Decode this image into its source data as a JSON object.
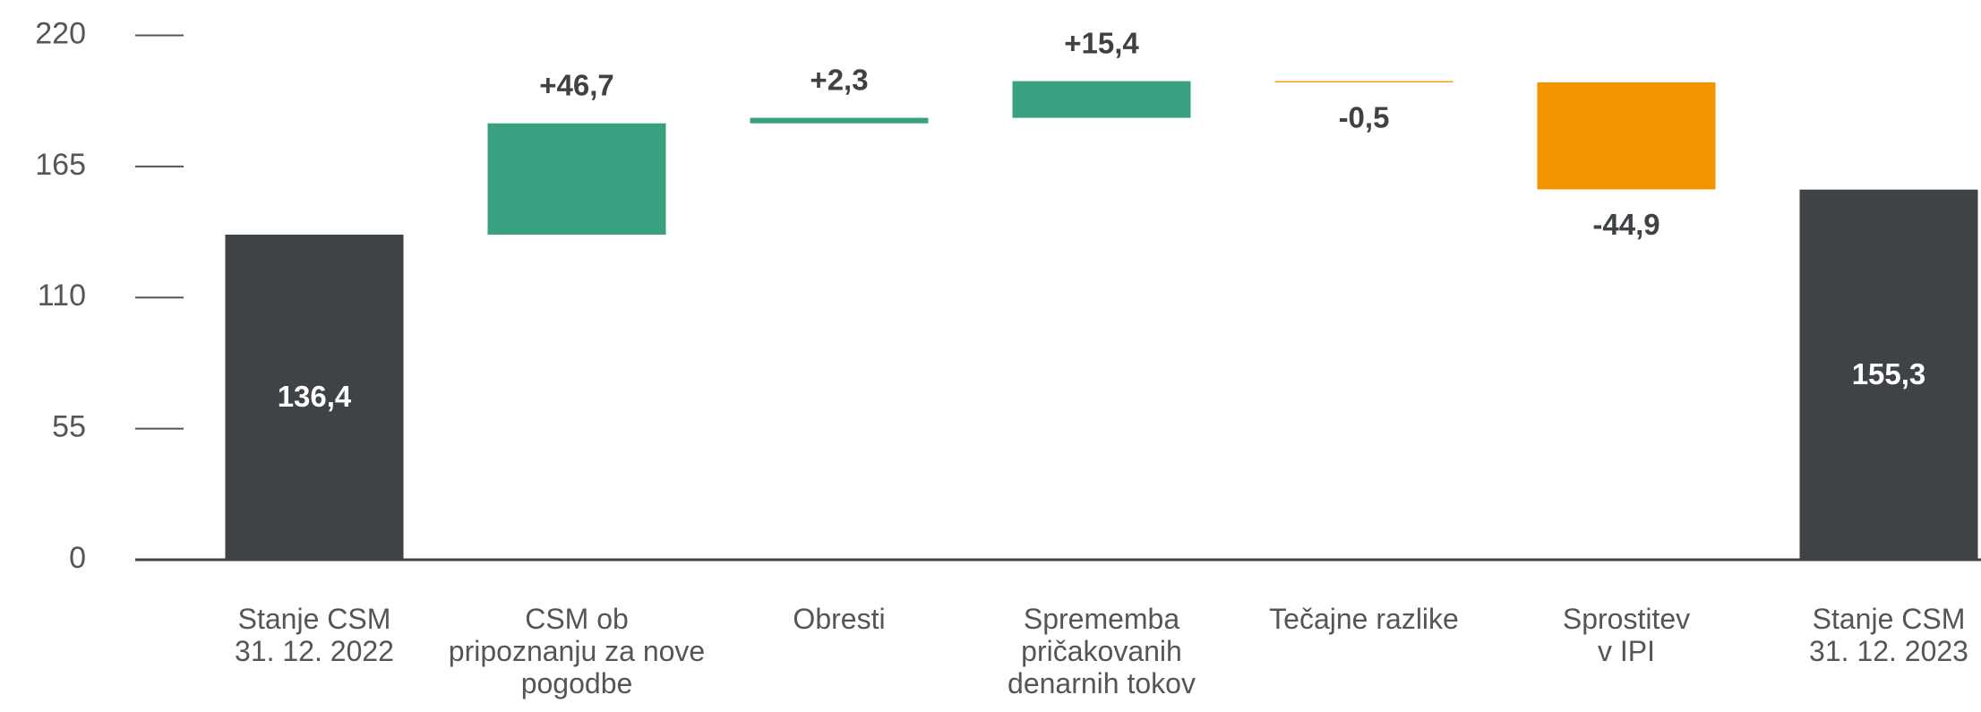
{
  "chart_data": {
    "type": "waterfall",
    "categories": [
      "Stanje CSM\n31. 12. 2022",
      "CSM ob\npripoznanju za nove\npogodbe",
      "Obresti",
      "Sprememba\npričakovanih\ndenarnih tokov",
      "Tečajne razlike",
      "Sprostitev\nv IPI",
      "Stanje CSM\n31. 12. 2023"
    ],
    "values": [
      136.4,
      46.7,
      2.3,
      15.4,
      -0.5,
      -44.9,
      155.3
    ],
    "value_labels": [
      "136,4",
      "+46,7",
      "+2,3",
      "+15,4",
      "-0,5",
      "-44,9",
      "155,3"
    ],
    "colors": [
      "#404346",
      "#3aa082",
      "#3aa082",
      "#3aa082",
      "#f29400",
      "#f29400",
      "#404346"
    ],
    "ylim": [
      0,
      220
    ],
    "yticks": [
      0,
      55,
      110,
      165,
      220
    ]
  }
}
